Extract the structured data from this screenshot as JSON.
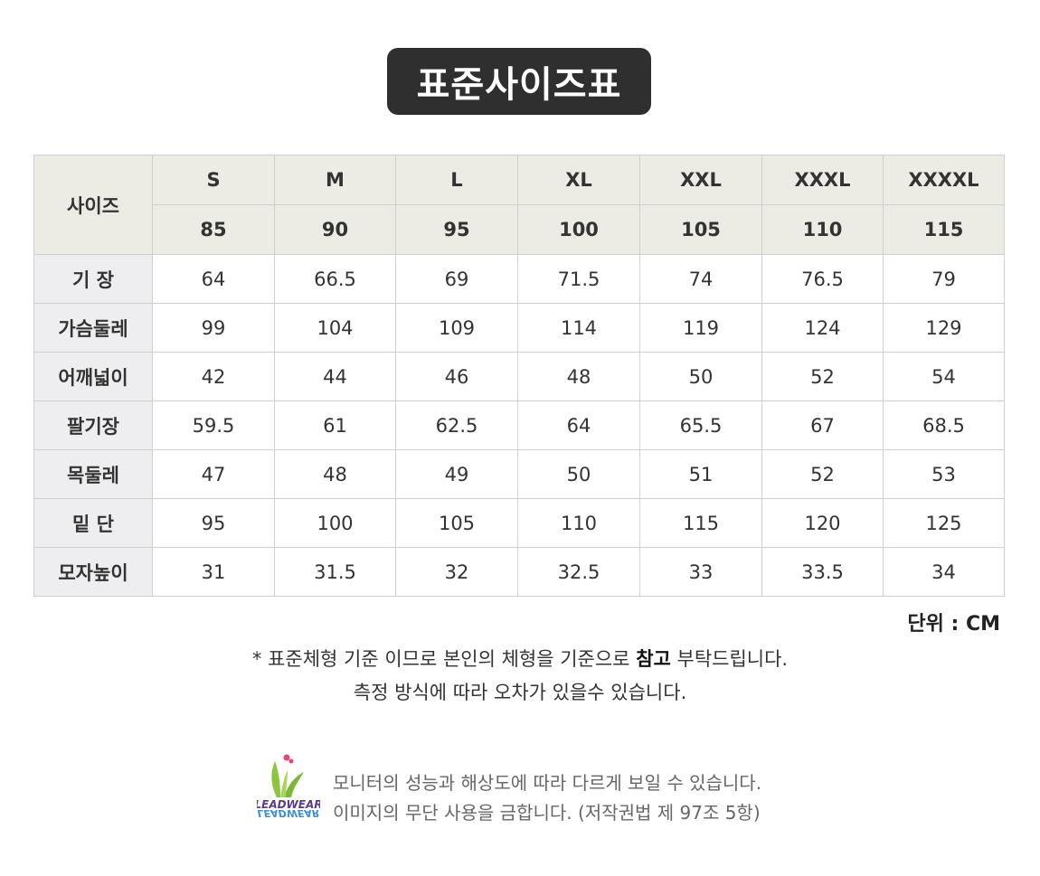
{
  "title": "표준사이즈표",
  "table": {
    "corner_label": "사이즈",
    "sizes": [
      "S",
      "M",
      "L",
      "XL",
      "XXL",
      "XXXL",
      "XXXXL"
    ],
    "size_numbers": [
      "85",
      "90",
      "95",
      "100",
      "105",
      "110",
      "115"
    ],
    "rows": [
      {
        "label": "기 장",
        "values": [
          "64",
          "66.5",
          "69",
          "71.5",
          "74",
          "76.5",
          "79"
        ]
      },
      {
        "label": "가슴둘레",
        "values": [
          "99",
          "104",
          "109",
          "114",
          "119",
          "124",
          "129"
        ]
      },
      {
        "label": "어깨넓이",
        "values": [
          "42",
          "44",
          "46",
          "48",
          "50",
          "52",
          "54"
        ]
      },
      {
        "label": "팔기장",
        "values": [
          "59.5",
          "61",
          "62.5",
          "64",
          "65.5",
          "67",
          "68.5"
        ]
      },
      {
        "label": "목둘레",
        "values": [
          "47",
          "48",
          "49",
          "50",
          "51",
          "52",
          "53"
        ]
      },
      {
        "label": "밑 단",
        "values": [
          "95",
          "100",
          "105",
          "110",
          "115",
          "120",
          "125"
        ]
      },
      {
        "label": "모자높이",
        "values": [
          "31",
          "31.5",
          "32",
          "32.5",
          "33",
          "33.5",
          "34"
        ]
      }
    ]
  },
  "unit": "단위 : CM",
  "notes": {
    "line1_pre": "* 표준체형 기준 이므로 본인의 체형을 기준으로 ",
    "line1_bold": "참고",
    "line1_post": " 부탁드립니다.",
    "line2": "측정 방식에 따라 오차가 있을수 있습니다."
  },
  "footer": {
    "logo_text": "LEADWEAR",
    "line1": "모니터의 성능과 해상도에 따라 다르게 보일 수 있습니다.",
    "line2": "이미지의 무단 사용을 금합니다. (저작권법 제 97조 5항)"
  },
  "colors": {
    "title_bg": "#2f2f2f",
    "header_bg": "#ecebe4",
    "label_bg": "#eeeef0",
    "logo_green": "#8cc63f",
    "logo_purple": "#5b3b8c",
    "logo_blue": "#3a8fd6",
    "logo_pink": "#e0457b"
  }
}
